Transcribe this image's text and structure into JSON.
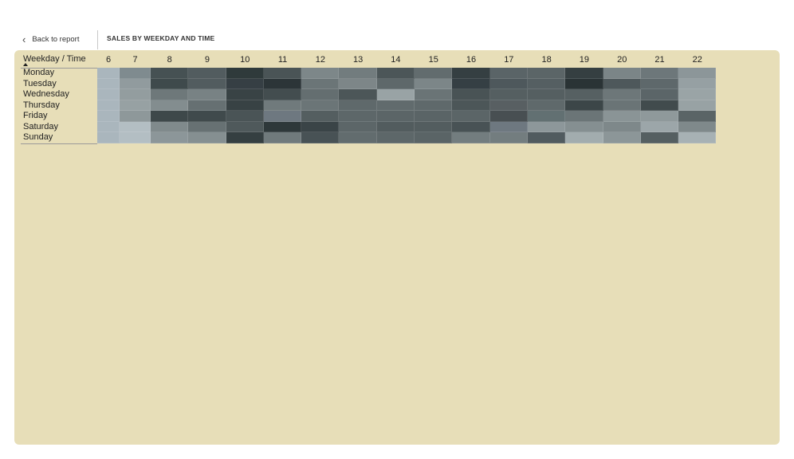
{
  "header": {
    "back_label": "Back to report",
    "title": "SALES BY WEEKDAY AND TIME"
  },
  "matrix": {
    "corner_label": "Weekday / Time",
    "columns": [
      "6",
      "7",
      "8",
      "9",
      "10",
      "11",
      "12",
      "13",
      "14",
      "15",
      "16",
      "17",
      "18",
      "19",
      "20",
      "21",
      "22"
    ],
    "rows": [
      "Monday",
      "Tuesday",
      "Wednesday",
      "Thursday",
      "Friday",
      "Saturday",
      "Sunday"
    ],
    "cell_colors": [
      [
        "#aab6bd",
        "#7f8b8f",
        "#465153",
        "#525c5f",
        "#2f3a3b",
        "#4a5456",
        "#7d8789",
        "#727c7e",
        "#4c5658",
        "#626c6e",
        "#353f42",
        "#5a6467",
        "#5b6567",
        "#353f41",
        "#7b8587",
        "#6d777a",
        "#8c9699"
      ],
      [
        "#aab6bd",
        "#919b9e",
        "#3f4a4c",
        "#525c5f",
        "#363f44",
        "#2c3538",
        "#6b7577",
        "#7d8688",
        "#5e686a",
        "#7c8688",
        "#353f44",
        "#4e585c",
        "#555f62",
        "#2a3335",
        "#4e585b",
        "#5e686b",
        "#96a0a3"
      ],
      [
        "#aab6bd",
        "#939d9f",
        "#6e787a",
        "#788284",
        "#394345",
        "#434d4f",
        "#646e70",
        "#4c5658",
        "#99a3a5",
        "#6a7476",
        "#495355",
        "#555f61",
        "#555f61",
        "#566062",
        "#6d7779",
        "#5b6568",
        "#9aa4a6"
      ],
      [
        "#aab6bd",
        "#97a1a3",
        "#838d8f",
        "#667072",
        "#384244",
        "#707a7c",
        "#6b7577",
        "#5f696b",
        "#616b6d",
        "#5f696b",
        "#4c5658",
        "#585f62",
        "#5f696b",
        "#3c4648",
        "#6a7476",
        "#414b4d",
        "#98a2a4"
      ],
      [
        "#aab6bd",
        "#8e989a",
        "#3e484a",
        "#404a4c",
        "#4a5456",
        "#6e7880",
        "#545e60",
        "#5d6769",
        "#5b6567",
        "#5a6466",
        "#5b6567",
        "#484f52",
        "#627072",
        "#6b7577",
        "#8a9496",
        "#8f999b",
        "#5a6466"
      ],
      [
        "#aab6bd",
        "#b3bec3",
        "#808a8c",
        "#677173",
        "#4f595b",
        "#2e383a",
        "#3a4447",
        "#5c6668",
        "#525c5e",
        "#535d5f",
        "#485255",
        "#6e7880",
        "#8d979a",
        "#858f91",
        "#7e888a",
        "#9ca6a9",
        "#7f898b"
      ],
      [
        "#aab6bd",
        "#b3bec3",
        "#8c9699",
        "#858f91",
        "#353f41",
        "#707a7c",
        "#485255",
        "#626c6e",
        "#5d6769",
        "#5a6466",
        "#737d7f",
        "#737d7f",
        "#515b5f",
        "#a2acae",
        "#8c9698",
        "#555f61",
        "#a7b1b4"
      ]
    ]
  }
}
